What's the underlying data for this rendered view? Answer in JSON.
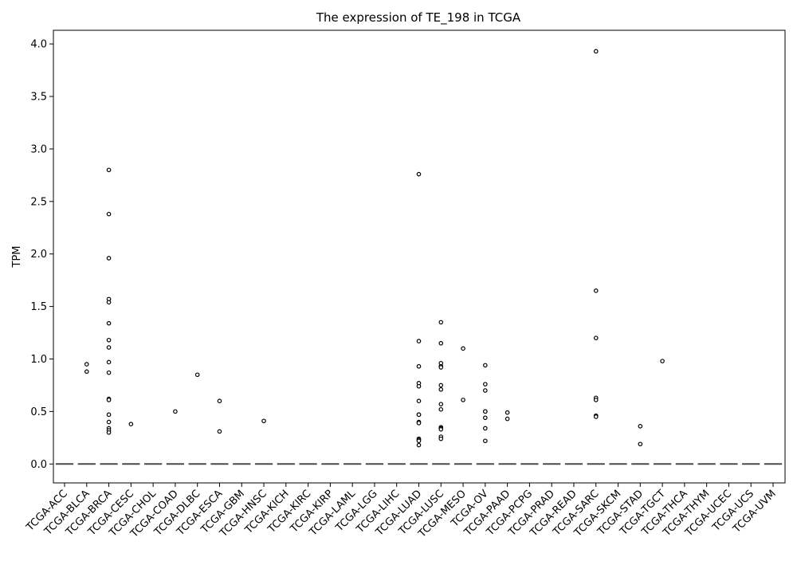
{
  "chart_data": {
    "type": "box",
    "title": "The expression of TE_198 in TCGA",
    "xlabel": "",
    "ylabel": "TPM",
    "ylim": [
      -0.18,
      4.13
    ],
    "yticks": [
      0.0,
      0.5,
      1.0,
      1.5,
      2.0,
      2.5,
      3.0,
      3.5,
      4.0
    ],
    "ytick_labels": [
      "0.0",
      "0.5",
      "1.0",
      "1.5",
      "2.0",
      "2.5",
      "3.0",
      "3.5",
      "4.0"
    ],
    "grid": false,
    "legend": "none",
    "box_color": "#4a4a4a",
    "median_value_all": 0.0,
    "categories": [
      "TCGA-ACC",
      "TCGA-BLCA",
      "TCGA-BRCA",
      "TCGA-CESC",
      "TCGA-CHOL",
      "TCGA-COAD",
      "TCGA-DLBC",
      "TCGA-ESCA",
      "TCGA-GBM",
      "TCGA-HNSC",
      "TCGA-KICH",
      "TCGA-KIRC",
      "TCGA-KIRP",
      "TCGA-LAML",
      "TCGA-LGG",
      "TCGA-LIHC",
      "TCGA-LUAD",
      "TCGA-LUSC",
      "TCGA-MESO",
      "TCGA-OV",
      "TCGA-PAAD",
      "TCGA-PCPG",
      "TCGA-PRAD",
      "TCGA-READ",
      "TCGA-SARC",
      "TCGA-SKCM",
      "TCGA-STAD",
      "TCGA-TGCT",
      "TCGA-THCA",
      "TCGA-THYM",
      "TCGA-UCEC",
      "TCGA-UCS",
      "TCGA-UVM"
    ],
    "outliers": [
      [],
      [
        0.95,
        0.88
      ],
      [
        2.8,
        2.38,
        1.96,
        1.57,
        1.54,
        1.34,
        1.18,
        1.11,
        0.97,
        0.87,
        0.62,
        0.61,
        0.47,
        0.4,
        0.34,
        0.32,
        0.3
      ],
      [
        0.38
      ],
      [],
      [
        0.5
      ],
      [
        0.85
      ],
      [
        0.6,
        0.31
      ],
      [],
      [
        0.41
      ],
      [],
      [],
      [],
      [],
      [],
      [],
      [
        2.76,
        1.17,
        0.93,
        0.77,
        0.74,
        0.6,
        0.47,
        0.47,
        0.4,
        0.39,
        0.24,
        0.23,
        0.22,
        0.18
      ],
      [
        1.35,
        1.15,
        0.96,
        0.93,
        0.92,
        0.75,
        0.71,
        0.57,
        0.52,
        0.35,
        0.34,
        0.33,
        0.26,
        0.24
      ],
      [
        1.1,
        0.61
      ],
      [
        0.94,
        0.76,
        0.7,
        0.5,
        0.5,
        0.44,
        0.34,
        0.22
      ],
      [
        0.49,
        0.43
      ],
      [],
      [],
      [],
      [
        3.93,
        1.65,
        1.2,
        0.63,
        0.61,
        0.46,
        0.45
      ],
      [],
      [
        0.36,
        0.19
      ],
      [
        0.98
      ],
      [],
      [],
      [],
      [],
      []
    ]
  }
}
